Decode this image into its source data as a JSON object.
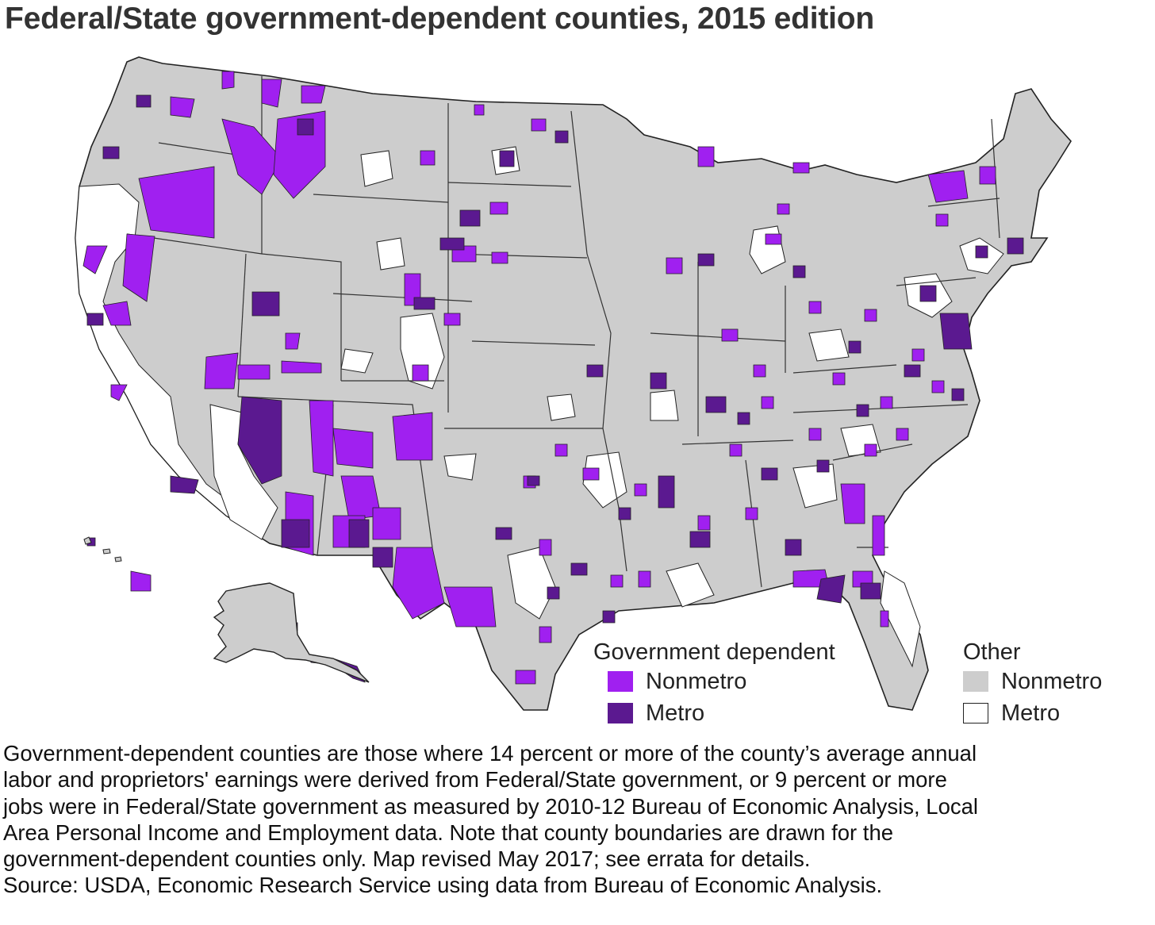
{
  "title": "Federal/State government-dependent counties, 2015 edition",
  "colors": {
    "gov_nonmetro": "#a020f0",
    "gov_metro": "#5b1990",
    "other_nonmetro": "#cdcdcd",
    "other_metro": "#ffffff",
    "border": "#222222"
  },
  "legend": {
    "gov_heading": "Government dependent",
    "gov_items": [
      {
        "label": "Nonmetro",
        "color": "#a020f0"
      },
      {
        "label": "Metro",
        "color": "#5b1990"
      }
    ],
    "other_heading": "Other",
    "other_items": [
      {
        "label": "Nonmetro",
        "color": "#cdcdcd"
      },
      {
        "label": "Metro",
        "color": "#ffffff"
      }
    ]
  },
  "footnote": {
    "lines": [
      "Government-dependent counties are those where 14 percent or more of the county’s average annual",
      "labor and proprietors' earnings were derived from Federal/State government, or 9 percent or more",
      "jobs were in Federal/State government as measured by 2010-12 Bureau of Economic Analysis, Local",
      "Area Personal Income and Employment data. Note that county boundaries are drawn for the",
      "government-dependent counties only. Map revised May 2017; see errata for details.",
      "Source: USDA, Economic Research Service using data from Bureau of Economic Analysis."
    ]
  }
}
